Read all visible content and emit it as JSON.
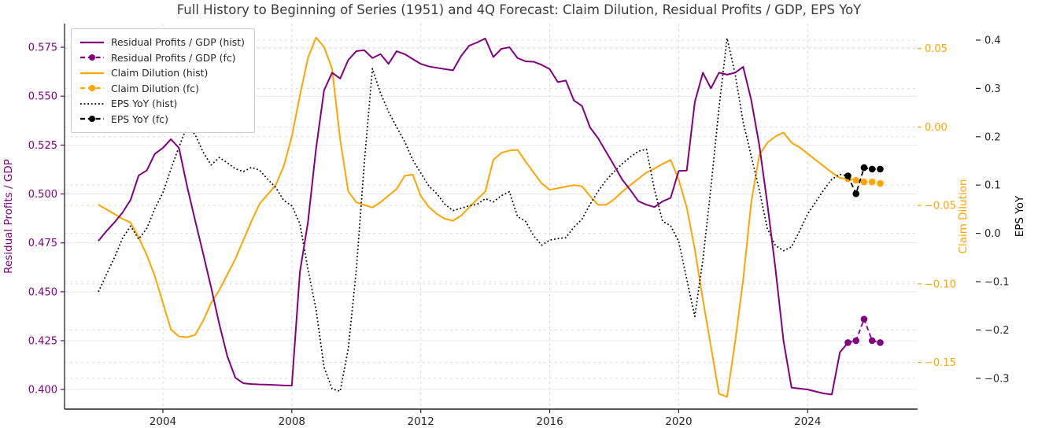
{
  "chart_data": {
    "type": "line",
    "title": "Full History to Beginning of Series (1951) and 4Q Forecast: Claim Dilution, Residual Profits / GDP, EPS YoY",
    "grid": true,
    "legend_position": "upper-left",
    "x_axis": {
      "label": "",
      "range": [
        2000.95,
        2027.41
      ],
      "tick_values": [
        2004,
        2008,
        2012,
        2016,
        2020,
        2024
      ],
      "tick_labels": [
        "2004",
        "2008",
        "2012",
        "2016",
        "2020",
        "2024"
      ]
    },
    "axes": {
      "left": {
        "label": "Residual Profits / GDP",
        "color": "#800080",
        "range": [
          0.39,
          0.5871
        ],
        "tick_values": [
          0.575,
          0.55,
          0.525,
          0.5,
          0.475,
          0.45,
          0.425,
          0.4
        ],
        "tick_labels": [
          "0.575",
          "0.550",
          "0.525",
          "0.500",
          "0.475",
          "0.450",
          "0.425",
          "0.400"
        ]
      },
      "right1": {
        "label": "Claim Dilution",
        "color": "#FFA500",
        "range": [
          -0.1798,
          0.0659
        ],
        "tick_values": [
          0.05,
          0.0,
          -0.05,
          -0.1,
          -0.15
        ],
        "tick_labels": [
          "0.05",
          "0.00",
          "−0.05",
          "−0.10",
          "−0.15"
        ]
      },
      "right2": {
        "label": "EPS YoY",
        "color": "#000000",
        "range": [
          -0.3639,
          0.4342
        ],
        "tick_values": [
          0.4,
          0.3,
          0.2,
          0.1,
          0.0,
          -0.1,
          -0.2,
          -0.3
        ],
        "tick_labels": [
          "0.4",
          "0.3",
          "0.2",
          "0.1",
          "0.0",
          "−0.1",
          "−0.2",
          "−0.3"
        ]
      }
    },
    "series": [
      {
        "name": "Claim Dilution (hist)",
        "axis": "right1",
        "color": "#FFA500",
        "style": "solid",
        "width": 2,
        "x_start": 2002.0,
        "x_step": 0.25,
        "y": [
          -0.0495,
          -0.0525,
          -0.0555,
          -0.0585,
          -0.061,
          -0.0705,
          -0.0815,
          -0.095,
          -0.112,
          -0.129,
          -0.1335,
          -0.134,
          -0.1325,
          -0.1235,
          -0.112,
          -0.104,
          -0.094,
          -0.084,
          -0.072,
          -0.06,
          -0.049,
          -0.043,
          -0.037,
          -0.025,
          -0.006,
          0.02,
          0.044,
          0.057,
          0.051,
          0.037,
          -0.008,
          -0.041,
          -0.048,
          -0.0497,
          -0.0513,
          -0.048,
          -0.0437,
          -0.0395,
          -0.0311,
          -0.0303,
          -0.044,
          -0.051,
          -0.0555,
          -0.0585,
          -0.0597,
          -0.0565,
          -0.0513,
          -0.046,
          -0.0412,
          -0.021,
          -0.0165,
          -0.015,
          -0.0145,
          -0.022,
          -0.029,
          -0.036,
          -0.04,
          -0.039,
          -0.038,
          -0.037,
          -0.0378,
          -0.044,
          -0.0496,
          -0.0496,
          -0.046,
          -0.0412,
          -0.037,
          -0.033,
          -0.029,
          -0.0265,
          -0.0235,
          -0.021,
          -0.0336,
          -0.0513,
          -0.078,
          -0.11,
          -0.14,
          -0.17,
          -0.172,
          -0.137,
          -0.0973,
          -0.048,
          -0.018,
          -0.01,
          -0.006,
          -0.0035,
          -0.01,
          -0.013,
          -0.017,
          -0.021,
          -0.025,
          -0.029,
          -0.0325,
          -0.033
        ]
      },
      {
        "name": "EPS YoY (hist)",
        "axis": "right2",
        "color": "#000000",
        "style": "dotted",
        "width": 1.7,
        "x_start": 2002.0,
        "x_step": 0.25,
        "y": [
          -0.121,
          -0.085,
          -0.05,
          -0.01,
          0.015,
          -0.012,
          0.01,
          0.051,
          0.084,
          0.133,
          0.179,
          0.221,
          0.2045,
          0.168,
          0.1415,
          0.157,
          0.146,
          0.1335,
          0.128,
          0.1365,
          0.131,
          0.112,
          0.095,
          0.068,
          0.057,
          0.02,
          -0.074,
          -0.157,
          -0.277,
          -0.322,
          -0.327,
          -0.239,
          -0.076,
          0.147,
          0.341,
          0.29,
          0.252,
          0.22,
          0.19,
          0.152,
          0.125,
          0.098,
          0.082,
          0.06,
          0.047,
          0.052,
          0.057,
          0.06,
          0.072,
          0.065,
          0.078,
          0.086,
          0.035,
          0.025,
          -0.005,
          -0.0245,
          -0.014,
          -0.011,
          -0.009,
          0.013,
          0.029,
          0.06,
          0.087,
          0.11,
          0.128,
          0.144,
          0.158,
          0.17,
          0.174,
          0.09,
          0.025,
          0.016,
          -0.017,
          -0.095,
          -0.172,
          -0.055,
          0.095,
          0.26,
          0.404,
          0.33,
          0.23,
          0.16,
          0.09,
          0.01,
          -0.025,
          -0.036,
          -0.028,
          0.005,
          0.04,
          0.065,
          0.09,
          0.112,
          0.122,
          0.119
        ]
      },
      {
        "name": "Residual Profits / GDP (hist)",
        "axis": "left",
        "color": "#800080",
        "style": "solid",
        "width": 2,
        "x_start": 2002.0,
        "x_step": 0.25,
        "y": [
          0.476,
          0.481,
          0.4855,
          0.4905,
          0.497,
          0.5095,
          0.512,
          0.5205,
          0.5235,
          0.528,
          0.5235,
          0.504,
          0.4865,
          0.4695,
          0.452,
          0.4335,
          0.417,
          0.406,
          0.4032,
          0.4028,
          0.4026,
          0.4025,
          0.4023,
          0.4021,
          0.402,
          0.46,
          0.4855,
          0.523,
          0.553,
          0.562,
          0.559,
          0.5685,
          0.573,
          0.5735,
          0.5695,
          0.5715,
          0.5665,
          0.573,
          0.5715,
          0.569,
          0.5665,
          0.5652,
          0.5645,
          0.5638,
          0.5632,
          0.5705,
          0.5758,
          0.5775,
          0.5795,
          0.57,
          0.5742,
          0.575,
          0.5695,
          0.5678,
          0.5676,
          0.566,
          0.5638,
          0.5572,
          0.558,
          0.5478,
          0.545,
          0.534,
          0.5285,
          0.5215,
          0.5145,
          0.5073,
          0.502,
          0.4963,
          0.4945,
          0.4933,
          0.4962,
          0.498,
          0.5118,
          0.512,
          0.547,
          0.562,
          0.554,
          0.562,
          0.561,
          0.562,
          0.565,
          0.548,
          0.525,
          0.495,
          0.462,
          0.425,
          0.401,
          0.4005,
          0.4,
          0.399,
          0.398,
          0.3975,
          0.419,
          0.424
        ]
      },
      {
        "name": "Claim Dilution (fc)",
        "axis": "right1",
        "color": "#FFA500",
        "style": "dash-marker",
        "width": 1.8,
        "x": [
          2025.25,
          2025.5,
          2025.75,
          2026.0,
          2026.25
        ],
        "y": [
          -0.033,
          -0.034,
          -0.035,
          -0.035,
          -0.036
        ]
      },
      {
        "name": "EPS YoY (fc)",
        "axis": "right2",
        "color": "#000000",
        "style": "dash-marker",
        "width": 1.8,
        "x": [
          2025.25,
          2025.5,
          2025.75,
          2026.0,
          2026.25
        ],
        "y": [
          0.119,
          0.082,
          0.136,
          0.133,
          0.133
        ]
      },
      {
        "name": "Residual Profits / GDP (fc)",
        "axis": "left",
        "color": "#800080",
        "style": "dash-marker",
        "width": 1.8,
        "x": [
          2025.25,
          2025.5,
          2025.75,
          2026.0,
          2026.25
        ],
        "y": [
          0.424,
          0.425,
          0.436,
          0.425,
          0.424
        ]
      }
    ],
    "legend_order": [
      "Residual Profits / GDP (hist)",
      "Residual Profits / GDP (fc)",
      "Claim Dilution (hist)",
      "Claim Dilution (fc)",
      "EPS YoY (hist)",
      "EPS YoY (fc)"
    ]
  }
}
